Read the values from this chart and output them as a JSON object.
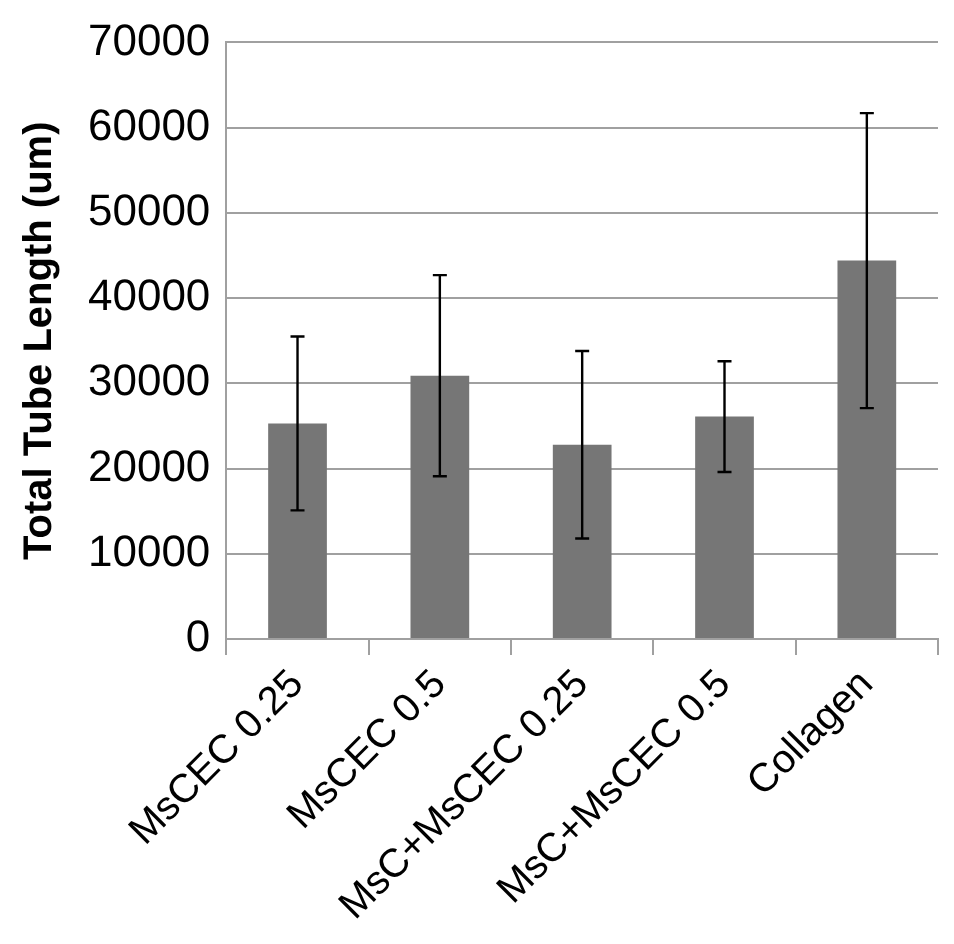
{
  "chart_data": {
    "type": "bar",
    "ylabel": "Total Tube Length (um)",
    "categories": [
      "MsCEC 0.25",
      "MsCEC 0.5",
      "MsC+MsCEC 0.25",
      "MsC+MsCEC 0.5",
      "Collagen"
    ],
    "values": [
      25300,
      30900,
      22800,
      26100,
      44400
    ],
    "errors": [
      10200,
      11800,
      11000,
      6500,
      17300
    ],
    "color": "#767676",
    "ylim": [
      0,
      70000
    ],
    "yticks": [
      0,
      10000,
      20000,
      30000,
      40000,
      50000,
      60000,
      70000
    ],
    "grid": "y",
    "legend": false
  }
}
